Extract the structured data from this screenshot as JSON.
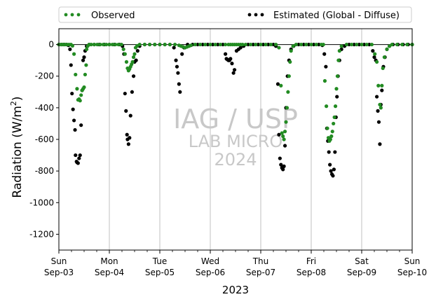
{
  "chart_data": {
    "type": "scatter",
    "title": "",
    "xlabel": "2023",
    "ylabel": "Radiation (W/m²)",
    "x_unit": "days",
    "xlim": [
      "2023-09-03",
      "2023-09-10"
    ],
    "ylim": [
      -1300,
      100
    ],
    "yticks": [
      0,
      -200,
      -400,
      -600,
      -800,
      -1000,
      -1200
    ],
    "xticks": [
      {
        "day": "Sun",
        "date": "Sep-03"
      },
      {
        "day": "Mon",
        "date": "Sep-04"
      },
      {
        "day": "Tue",
        "date": "Sep-05"
      },
      {
        "day": "Wed",
        "date": "Sep-06"
      },
      {
        "day": "Thu",
        "date": "Sep-07"
      },
      {
        "day": "Fri",
        "date": "Sep-08"
      },
      {
        "day": "Sat",
        "date": "Sep-09"
      },
      {
        "day": "Sun",
        "date": "Sep-10"
      }
    ],
    "grid": "vertical",
    "legend": {
      "placement": "top",
      "entries": [
        "Observed",
        "Estimated (Global - Diffuse)"
      ]
    },
    "watermark": [
      "IAG / USP",
      "LAB MICRO",
      "2024"
    ],
    "colors": {
      "observed": "#228B22",
      "estimated": "#000000",
      "zero_line": "#000000",
      "grid": "#b0b0b0",
      "watermark": "#c8c8c8"
    },
    "series": [
      {
        "name": "Observed",
        "points": [
          [
            0.0,
            0
          ],
          [
            0.04,
            0
          ],
          [
            0.08,
            0
          ],
          [
            0.12,
            0
          ],
          [
            0.16,
            0
          ],
          [
            0.2,
            0
          ],
          [
            0.24,
            0
          ],
          [
            0.27,
            -8
          ],
          [
            0.3,
            -60
          ],
          [
            0.33,
            -190
          ],
          [
            0.36,
            -280
          ],
          [
            0.38,
            -350
          ],
          [
            0.4,
            -345
          ],
          [
            0.42,
            -355
          ],
          [
            0.44,
            -320
          ],
          [
            0.46,
            -290
          ],
          [
            0.48,
            -280
          ],
          [
            0.5,
            -270
          ],
          [
            0.52,
            -190
          ],
          [
            0.54,
            -130
          ],
          [
            0.55,
            -30
          ],
          [
            0.57,
            -10
          ],
          [
            0.6,
            0
          ],
          [
            0.64,
            0
          ],
          [
            0.7,
            0
          ],
          [
            0.76,
            0
          ],
          [
            0.82,
            0
          ],
          [
            0.88,
            0
          ],
          [
            0.94,
            0
          ],
          [
            1.0,
            0
          ],
          [
            1.06,
            0
          ],
          [
            1.12,
            0
          ],
          [
            1.18,
            0
          ],
          [
            1.24,
            0
          ],
          [
            1.28,
            -30
          ],
          [
            1.31,
            -60
          ],
          [
            1.34,
            -110
          ],
          [
            1.36,
            -150
          ],
          [
            1.38,
            -165
          ],
          [
            1.4,
            -155
          ],
          [
            1.42,
            -140
          ],
          [
            1.44,
            -125
          ],
          [
            1.46,
            -110
          ],
          [
            1.48,
            -80
          ],
          [
            1.5,
            -60
          ],
          [
            1.52,
            -20
          ],
          [
            1.55,
            -8
          ],
          [
            1.6,
            0
          ],
          [
            1.7,
            0
          ],
          [
            1.8,
            0
          ],
          [
            1.9,
            0
          ],
          [
            2.0,
            0
          ],
          [
            2.1,
            0
          ],
          [
            2.2,
            0
          ],
          [
            2.3,
            0
          ],
          [
            2.38,
            -5
          ],
          [
            2.42,
            -10
          ],
          [
            2.46,
            -15
          ],
          [
            2.5,
            -20
          ],
          [
            2.54,
            -15
          ],
          [
            2.58,
            -10
          ],
          [
            2.62,
            -5
          ],
          [
            2.7,
            0
          ],
          [
            2.8,
            0
          ],
          [
            2.9,
            0
          ],
          [
            3.0,
            0
          ],
          [
            3.1,
            0
          ],
          [
            3.2,
            0
          ],
          [
            3.3,
            0
          ],
          [
            3.36,
            0
          ],
          [
            3.4,
            0
          ],
          [
            3.44,
            0
          ],
          [
            3.48,
            0
          ],
          [
            3.52,
            0
          ],
          [
            3.56,
            0
          ],
          [
            3.6,
            0
          ],
          [
            3.64,
            0
          ],
          [
            3.7,
            0
          ],
          [
            3.8,
            0
          ],
          [
            3.9,
            0
          ],
          [
            4.0,
            0
          ],
          [
            4.1,
            0
          ],
          [
            4.2,
            0
          ],
          [
            4.3,
            0
          ],
          [
            4.36,
            -20
          ],
          [
            4.4,
            -260
          ],
          [
            4.42,
            -560
          ],
          [
            4.44,
            -580
          ],
          [
            4.46,
            -600
          ],
          [
            4.48,
            -550
          ],
          [
            4.5,
            -490
          ],
          [
            4.52,
            -400
          ],
          [
            4.54,
            -300
          ],
          [
            4.56,
            -200
          ],
          [
            4.58,
            -110
          ],
          [
            4.6,
            -40
          ],
          [
            4.64,
            -10
          ],
          [
            4.7,
            0
          ],
          [
            4.8,
            0
          ],
          [
            4.9,
            0
          ],
          [
            5.0,
            0
          ],
          [
            5.1,
            0
          ],
          [
            5.2,
            0
          ],
          [
            5.24,
            0
          ],
          [
            5.27,
            -230
          ],
          [
            5.3,
            -390
          ],
          [
            5.32,
            -530
          ],
          [
            5.34,
            -590
          ],
          [
            5.36,
            -610
          ],
          [
            5.38,
            -600
          ],
          [
            5.4,
            -580
          ],
          [
            5.42,
            -550
          ],
          [
            5.44,
            -500
          ],
          [
            5.46,
            -460
          ],
          [
            5.48,
            -390
          ],
          [
            5.5,
            -280
          ],
          [
            5.52,
            -200
          ],
          [
            5.54,
            -100
          ],
          [
            5.56,
            -40
          ],
          [
            5.6,
            -10
          ],
          [
            5.7,
            0
          ],
          [
            5.8,
            0
          ],
          [
            5.9,
            0
          ],
          [
            6.0,
            0
          ],
          [
            6.1,
            0
          ],
          [
            6.2,
            0
          ],
          [
            6.26,
            -60
          ],
          [
            6.3,
            -110
          ],
          [
            6.33,
            -260
          ],
          [
            6.36,
            -380
          ],
          [
            6.38,
            -400
          ],
          [
            6.4,
            -260
          ],
          [
            6.42,
            -150
          ],
          [
            6.45,
            -80
          ],
          [
            6.5,
            -30
          ],
          [
            6.55,
            -10
          ],
          [
            6.6,
            0
          ],
          [
            6.7,
            0
          ],
          [
            6.8,
            0
          ],
          [
            6.9,
            0
          ],
          [
            7.0,
            0
          ]
        ]
      },
      {
        "name": "Estimated (Global - Diffuse)",
        "points": [
          [
            0.0,
            0
          ],
          [
            0.05,
            0
          ],
          [
            0.1,
            0
          ],
          [
            0.15,
            0
          ],
          [
            0.19,
            -5
          ],
          [
            0.22,
            -30
          ],
          [
            0.24,
            -130
          ],
          [
            0.26,
            -310
          ],
          [
            0.28,
            -410
          ],
          [
            0.3,
            -480
          ],
          [
            0.32,
            -540
          ],
          [
            0.33,
            -700
          ],
          [
            0.35,
            -740
          ],
          [
            0.36,
            -745
          ],
          [
            0.38,
            -750
          ],
          [
            0.4,
            -720
          ],
          [
            0.42,
            -700
          ],
          [
            0.44,
            -510
          ],
          [
            0.46,
            -290
          ],
          [
            0.48,
            -100
          ],
          [
            0.5,
            -80
          ],
          [
            0.52,
            -40
          ],
          [
            0.55,
            -10
          ],
          [
            0.6,
            0
          ],
          [
            0.7,
            0
          ],
          [
            0.8,
            0
          ],
          [
            0.9,
            0
          ],
          [
            1.0,
            0
          ],
          [
            1.1,
            0
          ],
          [
            1.2,
            0
          ],
          [
            1.26,
            -10
          ],
          [
            1.29,
            -60
          ],
          [
            1.31,
            -310
          ],
          [
            1.33,
            -420
          ],
          [
            1.35,
            -570
          ],
          [
            1.36,
            -600
          ],
          [
            1.38,
            -630
          ],
          [
            1.4,
            -590
          ],
          [
            1.42,
            -450
          ],
          [
            1.45,
            -300
          ],
          [
            1.48,
            -200
          ],
          [
            1.5,
            -110
          ],
          [
            1.53,
            -100
          ],
          [
            1.56,
            -40
          ],
          [
            1.6,
            -10
          ],
          [
            1.7,
            0
          ],
          [
            1.8,
            0
          ],
          [
            1.9,
            0
          ],
          [
            2.0,
            0
          ],
          [
            2.1,
            0
          ],
          [
            2.2,
            0
          ],
          [
            2.28,
            -20
          ],
          [
            2.32,
            -100
          ],
          [
            2.34,
            -140
          ],
          [
            2.36,
            -180
          ],
          [
            2.38,
            -250
          ],
          [
            2.4,
            -300
          ],
          [
            2.44,
            -60
          ],
          [
            2.48,
            -20
          ],
          [
            2.55,
            0
          ],
          [
            2.65,
            0
          ],
          [
            2.75,
            0
          ],
          [
            2.85,
            0
          ],
          [
            2.95,
            0
          ],
          [
            3.05,
            0
          ],
          [
            3.15,
            0
          ],
          [
            3.25,
            0
          ],
          [
            3.3,
            -60
          ],
          [
            3.32,
            -90
          ],
          [
            3.34,
            -95
          ],
          [
            3.36,
            -100
          ],
          [
            3.38,
            -100
          ],
          [
            3.4,
            -90
          ],
          [
            3.43,
            -120
          ],
          [
            3.46,
            -180
          ],
          [
            3.48,
            -160
          ],
          [
            3.52,
            -40
          ],
          [
            3.56,
            -30
          ],
          [
            3.6,
            -20
          ],
          [
            3.66,
            -10
          ],
          [
            3.75,
            0
          ],
          [
            3.85,
            0
          ],
          [
            3.95,
            0
          ],
          [
            4.05,
            0
          ],
          [
            4.15,
            0
          ],
          [
            4.25,
            0
          ],
          [
            4.3,
            -10
          ],
          [
            4.34,
            -250
          ],
          [
            4.36,
            -570
          ],
          [
            4.38,
            -720
          ],
          [
            4.4,
            -760
          ],
          [
            4.42,
            -780
          ],
          [
            4.44,
            -790
          ],
          [
            4.46,
            -770
          ],
          [
            4.48,
            -640
          ],
          [
            4.5,
            -400
          ],
          [
            4.53,
            -200
          ],
          [
            4.56,
            -100
          ],
          [
            4.6,
            -30
          ],
          [
            4.65,
            -10
          ],
          [
            4.75,
            0
          ],
          [
            4.85,
            0
          ],
          [
            4.95,
            0
          ],
          [
            5.05,
            0
          ],
          [
            5.15,
            0
          ],
          [
            5.22,
            -5
          ],
          [
            5.26,
            -60
          ],
          [
            5.29,
            -140
          ],
          [
            5.31,
            -530
          ],
          [
            5.33,
            -610
          ],
          [
            5.35,
            -680
          ],
          [
            5.37,
            -760
          ],
          [
            5.39,
            -800
          ],
          [
            5.41,
            -820
          ],
          [
            5.43,
            -830
          ],
          [
            5.45,
            -790
          ],
          [
            5.47,
            -680
          ],
          [
            5.49,
            -460
          ],
          [
            5.51,
            -330
          ],
          [
            5.53,
            -200
          ],
          [
            5.56,
            -100
          ],
          [
            5.6,
            -30
          ],
          [
            5.66,
            -10
          ],
          [
            5.75,
            0
          ],
          [
            5.85,
            0
          ],
          [
            5.95,
            0
          ],
          [
            6.05,
            0
          ],
          [
            6.15,
            0
          ],
          [
            6.22,
            -40
          ],
          [
            6.25,
            -80
          ],
          [
            6.28,
            -100
          ],
          [
            6.3,
            -330
          ],
          [
            6.32,
            -420
          ],
          [
            6.34,
            -490
          ],
          [
            6.36,
            -630
          ],
          [
            6.38,
            -380
          ],
          [
            6.4,
            -290
          ],
          [
            6.43,
            -140
          ],
          [
            6.46,
            -80
          ],
          [
            6.5,
            -30
          ],
          [
            6.55,
            -10
          ],
          [
            6.62,
            0
          ],
          [
            6.72,
            0
          ],
          [
            6.82,
            0
          ],
          [
            6.92,
            0
          ],
          [
            7.0,
            0
          ]
        ]
      }
    ]
  }
}
